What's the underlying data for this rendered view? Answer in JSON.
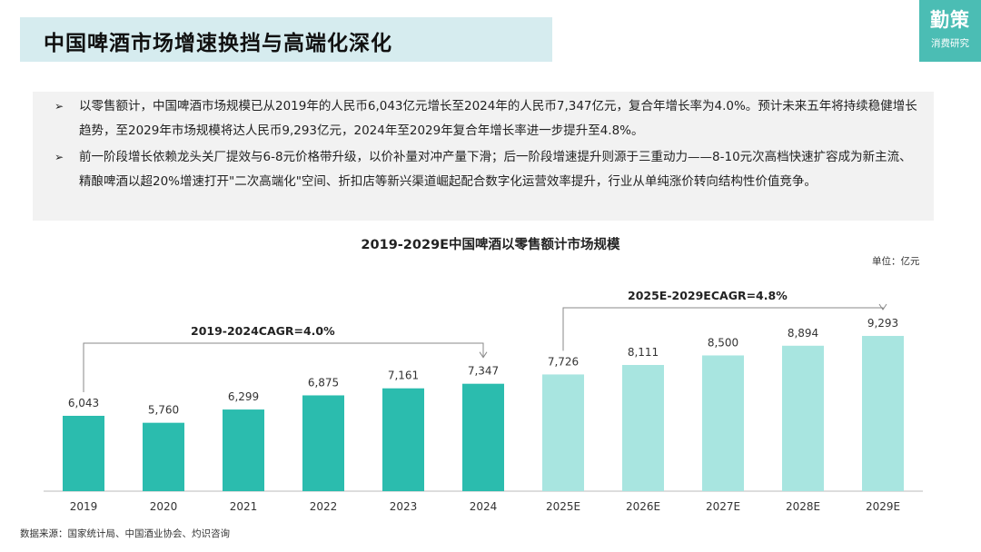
{
  "header": {
    "title": "中国啤酒市场增速换挡与高端化深化",
    "logo_main": "勤策",
    "logo_sub": "消费研究"
  },
  "summary": {
    "bullet_mark": "➢",
    "bullets": [
      "以零售额计，中国啤酒市场规模已从2019年的人民币6,043亿元增长至2024年的人民币7,347亿元，复合年增长率为4.0%。预计未来五年将持续稳健增长趋势，至2029年市场规模将达人民币9,293亿元，2024年至2029年复合年增长率进一步提升至4.8%。",
      "前一阶段增长依赖龙头关厂提效与6-8元价格带升级，以价补量对冲产量下滑；后一阶段增速提升则源于三重动力——8-10元次高档快速扩容成为新主流、精酿啤酒以超20%增速打开\"二次高端化\"空间、折扣店等新兴渠道崛起配合数字化运营效率提升，行业从单纯涨价转向结构性价值竞争。"
    ]
  },
  "footer": {
    "source": "数据来源：国家统计局、中国酒业协会、灼识咨询"
  },
  "chart_data": {
    "type": "bar",
    "title": "2019-2029E中国啤酒以零售额计市场规模",
    "unit_label": "单位：亿元",
    "categories": [
      "2019",
      "2020",
      "2021",
      "2022",
      "2023",
      "2024",
      "2025E",
      "2026E",
      "2027E",
      "2028E",
      "2029E"
    ],
    "values": [
      6043,
      5760,
      6299,
      6875,
      7161,
      7347,
      7726,
      8111,
      8500,
      8894,
      9293
    ],
    "value_labels": [
      "6,043",
      "5,760",
      "6,299",
      "6,875",
      "7,161",
      "7,347",
      "7,726",
      "8,111",
      "8,500",
      "8,894",
      "9,293"
    ],
    "historical_color": "#2bbcae",
    "forecast_color": "#a8e5e0",
    "forecast_start_index": 6,
    "annotations": [
      {
        "label": "2019-2024CAGR=4.0%",
        "from_index": 0,
        "to_index": 5
      },
      {
        "label": "2025E-2029ECAGR=4.8%",
        "from_index": 6,
        "to_index": 10
      }
    ]
  }
}
